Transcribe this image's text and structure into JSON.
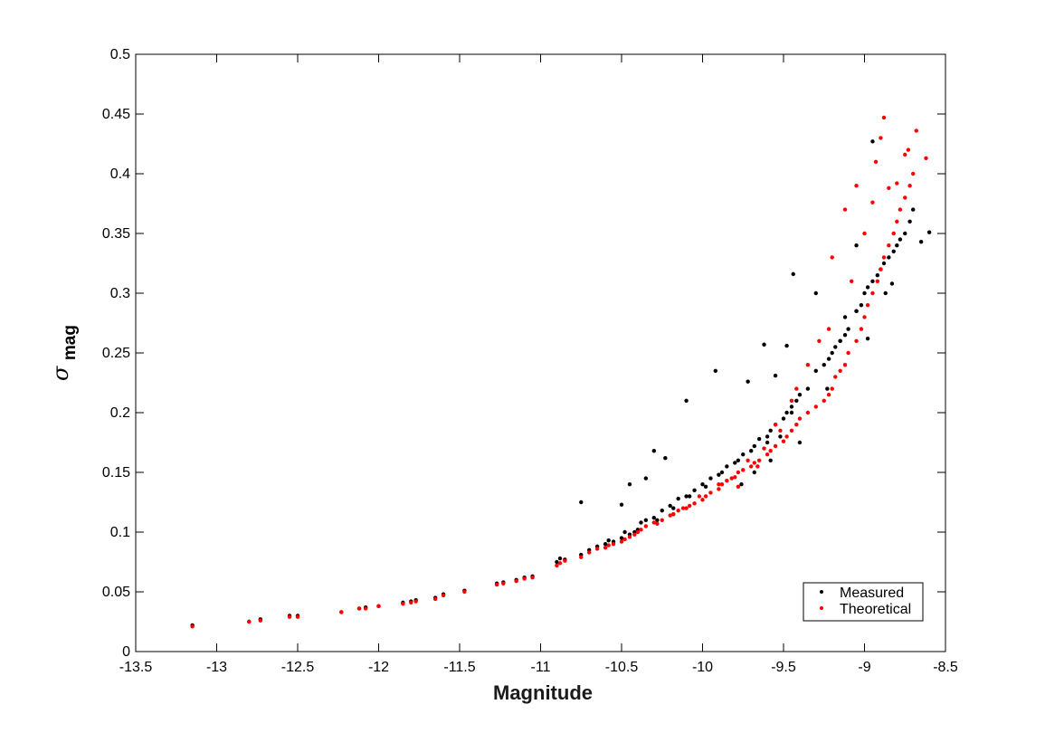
{
  "chart_data": {
    "type": "scatter",
    "title": "",
    "xlabel": "Magnitude",
    "ylabel": {
      "symbol": "σ",
      "subscript": "mag"
    },
    "xlim": [
      -13.5,
      -8.5
    ],
    "ylim": [
      0,
      0.5
    ],
    "xticks": [
      -13.5,
      -13,
      -12.5,
      -12,
      -11.5,
      -11,
      -10.5,
      -10,
      -9.5,
      -9,
      -8.5
    ],
    "xtick_labels": [
      "-13.5",
      "-13",
      "-12.5",
      "-12",
      "-11.5",
      "-11",
      "-10.5",
      "-10",
      "-9.5",
      "-9",
      "-8.5"
    ],
    "yticks": [
      0,
      0.05,
      0.1,
      0.15,
      0.2,
      0.25,
      0.3,
      0.35,
      0.4,
      0.45,
      0.5
    ],
    "ytick_labels": [
      "0",
      "0.05",
      "0.1",
      "0.15",
      "0.2",
      "0.25",
      "0.3",
      "0.35",
      "0.4",
      "0.45",
      "0.5"
    ],
    "grid": false,
    "legend_position": "bottom-right",
    "series": [
      {
        "name": "Measured",
        "color": "#000000",
        "x": [
          -13.15,
          -12.8,
          -12.73,
          -12.55,
          -12.5,
          -12.23,
          -12.12,
          -12.08,
          -12.0,
          -11.85,
          -11.8,
          -11.77,
          -11.65,
          -11.6,
          -11.47,
          -11.27,
          -11.23,
          -11.15,
          -11.1,
          -11.05,
          -10.9,
          -10.88,
          -10.85,
          -10.75,
          -10.7,
          -10.65,
          -10.6,
          -10.58,
          -10.55,
          -10.5,
          -10.48,
          -10.45,
          -10.42,
          -10.4,
          -10.38,
          -10.35,
          -10.3,
          -10.28,
          -10.25,
          -10.2,
          -10.18,
          -10.15,
          -10.1,
          -10.08,
          -10.05,
          -10.0,
          -9.98,
          -9.95,
          -9.9,
          -9.88,
          -9.85,
          -9.8,
          -9.78,
          -9.75,
          -9.7,
          -9.68,
          -9.65,
          -9.6,
          -9.58,
          -9.55,
          -9.5,
          -9.48,
          -9.45,
          -9.42,
          -9.4,
          -9.35,
          -9.3,
          -9.25,
          -9.22,
          -9.2,
          -9.18,
          -9.15,
          -9.12,
          -9.1,
          -9.05,
          -9.02,
          -9.0,
          -8.98,
          -8.95,
          -8.92,
          -8.9,
          -8.88,
          -8.85,
          -8.82,
          -8.8,
          -8.78,
          -8.75,
          -8.72,
          -8.7,
          -8.65,
          -8.6,
          -10.75,
          -10.5,
          -10.45,
          -10.3,
          -10.35,
          -10.23,
          -10.1,
          -9.92,
          -9.72,
          -9.62,
          -9.55,
          -9.48,
          -9.44,
          -9.3,
          -9.23,
          -9.05,
          -8.95,
          -8.98,
          -9.15,
          -9.05,
          -9.45,
          -9.52,
          -9.6,
          -9.12,
          -8.87,
          -8.83,
          -9.68,
          -9.76,
          -9.58,
          -9.4
        ],
        "y": [
          0.022,
          0.025,
          0.027,
          0.03,
          0.03,
          0.033,
          0.036,
          0.037,
          0.038,
          0.041,
          0.042,
          0.043,
          0.045,
          0.048,
          0.051,
          0.057,
          0.058,
          0.06,
          0.062,
          0.063,
          0.075,
          0.078,
          0.077,
          0.081,
          0.085,
          0.088,
          0.09,
          0.093,
          0.092,
          0.095,
          0.1,
          0.098,
          0.1,
          0.102,
          0.108,
          0.11,
          0.112,
          0.11,
          0.118,
          0.122,
          0.12,
          0.128,
          0.13,
          0.13,
          0.135,
          0.14,
          0.138,
          0.145,
          0.148,
          0.15,
          0.155,
          0.158,
          0.16,
          0.165,
          0.168,
          0.172,
          0.178,
          0.18,
          0.185,
          0.19,
          0.195,
          0.2,
          0.205,
          0.21,
          0.215,
          0.22,
          0.235,
          0.24,
          0.245,
          0.25,
          0.255,
          0.26,
          0.265,
          0.27,
          0.285,
          0.29,
          0.3,
          0.305,
          0.31,
          0.315,
          0.32,
          0.325,
          0.33,
          0.335,
          0.34,
          0.345,
          0.35,
          0.36,
          0.37,
          0.343,
          0.351,
          0.125,
          0.123,
          0.14,
          0.168,
          0.145,
          0.162,
          0.21,
          0.235,
          0.226,
          0.257,
          0.231,
          0.256,
          0.316,
          0.3,
          0.22,
          0.285,
          0.427,
          0.262,
          0.26,
          0.34,
          0.2,
          0.18,
          0.175,
          0.28,
          0.3,
          0.308,
          0.15,
          0.14,
          0.16,
          0.175
        ]
      },
      {
        "name": "Theoretical",
        "color": "#ff0000",
        "x": [
          -13.15,
          -12.8,
          -12.73,
          -12.55,
          -12.5,
          -12.23,
          -12.12,
          -12.08,
          -12.0,
          -11.85,
          -11.8,
          -11.77,
          -11.65,
          -11.6,
          -11.47,
          -11.27,
          -11.23,
          -11.15,
          -11.1,
          -11.05,
          -10.9,
          -10.88,
          -10.85,
          -10.75,
          -10.7,
          -10.65,
          -10.6,
          -10.58,
          -10.55,
          -10.5,
          -10.48,
          -10.45,
          -10.42,
          -10.4,
          -10.38,
          -10.35,
          -10.3,
          -10.28,
          -10.25,
          -10.2,
          -10.18,
          -10.15,
          -10.1,
          -10.08,
          -10.05,
          -10.0,
          -9.98,
          -9.95,
          -9.9,
          -9.88,
          -9.85,
          -9.8,
          -9.78,
          -9.75,
          -9.7,
          -9.68,
          -9.65,
          -9.6,
          -9.58,
          -9.55,
          -9.5,
          -9.48,
          -9.45,
          -9.42,
          -9.4,
          -9.35,
          -9.3,
          -9.25,
          -9.22,
          -9.2,
          -9.18,
          -9.15,
          -9.12,
          -9.1,
          -9.05,
          -9.02,
          -9.0,
          -8.98,
          -8.95,
          -8.92,
          -8.9,
          -8.88,
          -8.85,
          -8.82,
          -8.8,
          -8.78,
          -8.75,
          -8.72,
          -8.7,
          -8.68,
          -8.62,
          -8.73,
          -8.75,
          -8.88,
          -8.9,
          -8.93,
          -9.05,
          -8.8,
          -8.85,
          -9.12,
          -9.2,
          -9.28,
          -9.35,
          -9.45,
          -9.55,
          -9.62,
          -9.72,
          -9.82,
          -9.9,
          -10.02,
          -10.12,
          -10.18,
          -8.95,
          -9.0,
          -9.08,
          -9.22,
          -9.42,
          -9.52,
          -9.66,
          -9.78
        ],
        "y": [
          0.021,
          0.025,
          0.026,
          0.029,
          0.029,
          0.033,
          0.036,
          0.036,
          0.038,
          0.04,
          0.041,
          0.042,
          0.044,
          0.047,
          0.05,
          0.056,
          0.057,
          0.059,
          0.061,
          0.062,
          0.072,
          0.074,
          0.076,
          0.079,
          0.083,
          0.086,
          0.087,
          0.089,
          0.09,
          0.092,
          0.094,
          0.096,
          0.098,
          0.1,
          0.102,
          0.105,
          0.108,
          0.107,
          0.11,
          0.114,
          0.115,
          0.118,
          0.12,
          0.122,
          0.124,
          0.127,
          0.13,
          0.133,
          0.136,
          0.14,
          0.143,
          0.146,
          0.15,
          0.152,
          0.155,
          0.158,
          0.16,
          0.165,
          0.168,
          0.172,
          0.176,
          0.18,
          0.185,
          0.19,
          0.195,
          0.2,
          0.205,
          0.21,
          0.215,
          0.22,
          0.23,
          0.235,
          0.24,
          0.25,
          0.26,
          0.27,
          0.28,
          0.29,
          0.3,
          0.31,
          0.32,
          0.33,
          0.34,
          0.35,
          0.36,
          0.37,
          0.38,
          0.39,
          0.4,
          0.436,
          0.413,
          0.42,
          0.416,
          0.447,
          0.43,
          0.41,
          0.39,
          0.392,
          0.388,
          0.37,
          0.33,
          0.26,
          0.24,
          0.21,
          0.19,
          0.17,
          0.16,
          0.145,
          0.14,
          0.13,
          0.12,
          0.115,
          0.376,
          0.35,
          0.31,
          0.27,
          0.22,
          0.185,
          0.155,
          0.138
        ]
      }
    ]
  }
}
